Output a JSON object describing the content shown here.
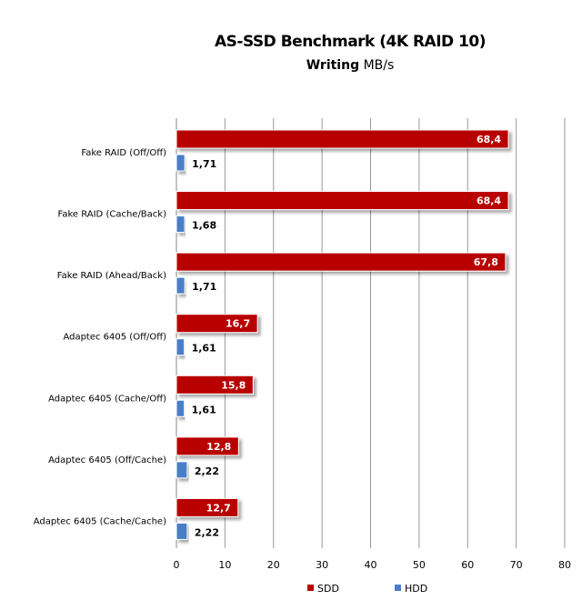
{
  "chart_data": {
    "type": "bar",
    "orientation": "horizontal",
    "title": "AS-SSD Benchmark (4K RAID 10)",
    "subtitle_bold": "Writing",
    "subtitle_rest": "MB/s",
    "categories": [
      "Fake RAID (Off/Off)",
      "Fake RAID (Cache/Back)",
      "Fake RAID (Ahead/Back)",
      "Adaptec 6405  (Off/Off)",
      "Adaptec 6405  (Cache/Off)",
      "Adaptec 6405  (Off/Cache)",
      "Adaptec 6405  (Cache/Cache)"
    ],
    "series": [
      {
        "name": "SDD",
        "color": "#B80000",
        "values": [
          68.4,
          68.4,
          67.8,
          16.7,
          15.8,
          12.8,
          12.7
        ],
        "labels": [
          "68,4",
          "68,4",
          "67,8",
          "16,7",
          "15,8",
          "12,8",
          "12,7"
        ]
      },
      {
        "name": "HDD",
        "color": "#4A7EC8",
        "values": [
          1.71,
          1.68,
          1.71,
          1.61,
          1.61,
          2.22,
          2.22
        ],
        "labels": [
          "1,71",
          "1,68",
          "1,71",
          "1,61",
          "1,61",
          "2,22",
          "2,22"
        ]
      }
    ],
    "xlim": [
      0,
      80
    ],
    "xticks": [
      "0",
      "10",
      "20",
      "30",
      "40",
      "50",
      "60",
      "70",
      "80"
    ],
    "grid": true,
    "legend": "bottom"
  }
}
